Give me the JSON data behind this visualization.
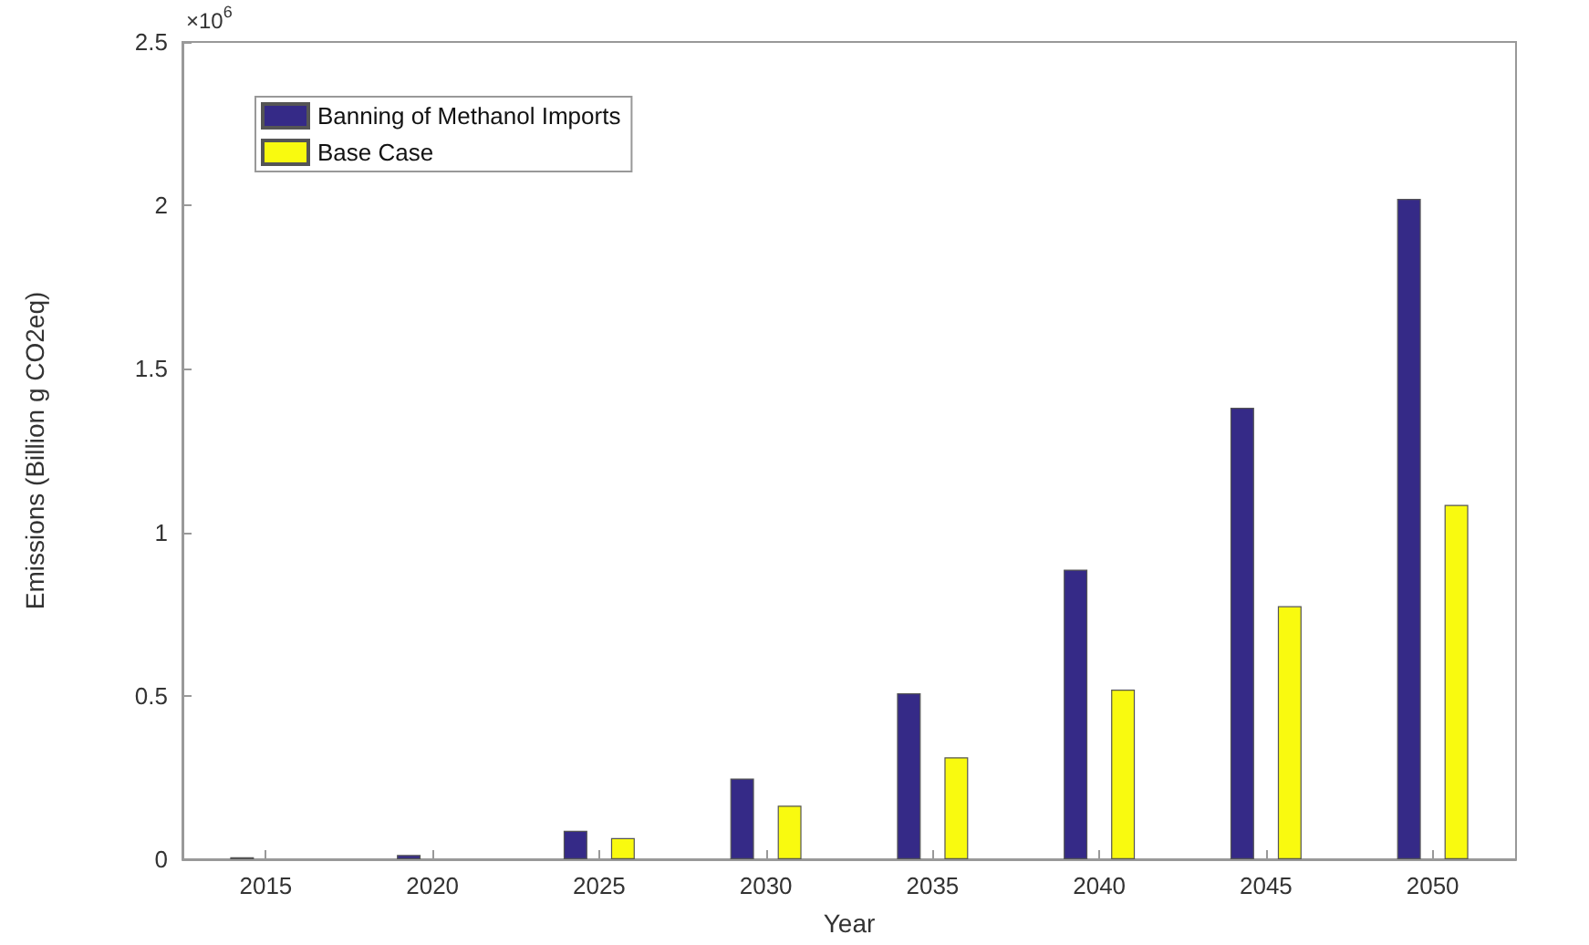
{
  "chart_data": {
    "type": "bar",
    "xlabel": "Year",
    "ylabel": "Emissions (Billion g CO2eq)",
    "annotations": [
      "×10$^{6}$"
    ],
    "categories": [
      "2015",
      "2020",
      "2025",
      "2030",
      "2035",
      "2040",
      "2045",
      "2050"
    ],
    "series": [
      {
        "name": "Banning of Methanol Imports",
        "color": "#352a87",
        "values": [
          0.006,
          0.013,
          0.087,
          0.247,
          0.508,
          0.886,
          1.381,
          2.02
        ]
      },
      {
        "name": "Base Case",
        "color": "#f9fa0f",
        "values": [
          null,
          null,
          0.065,
          0.164,
          0.312,
          0.519,
          0.774,
          1.084
        ]
      }
    ],
    "ylim": [
      0,
      2.5
    ],
    "yticks": [
      0,
      0.5,
      1,
      1.5,
      2,
      2.5
    ],
    "grid": false,
    "legend": "top left"
  }
}
